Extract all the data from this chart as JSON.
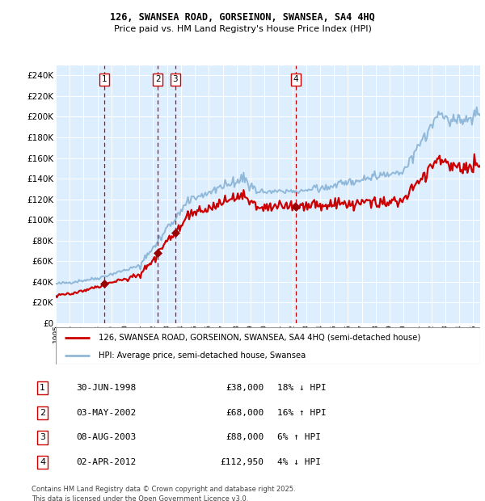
{
  "title": "126, SWANSEA ROAD, GORSEINON, SWANSEA, SA4 4HQ",
  "subtitle": "Price paid vs. HM Land Registry's House Price Index (HPI)",
  "ylim": [
    0,
    250000
  ],
  "yticks": [
    0,
    20000,
    40000,
    60000,
    80000,
    100000,
    120000,
    140000,
    160000,
    180000,
    200000,
    220000,
    240000
  ],
  "ytick_labels": [
    "£0",
    "£20K",
    "£40K",
    "£60K",
    "£80K",
    "£100K",
    "£120K",
    "£140K",
    "£160K",
    "£180K",
    "£200K",
    "£220K",
    "£240K"
  ],
  "hpi_color": "#90b8d8",
  "price_color": "#cc0000",
  "dot_color": "#990000",
  "vline_color": "#cc0000",
  "plot_bg_color": "#ddeeff",
  "xlim_start": 1995.0,
  "xlim_end": 2025.5,
  "sale_points": [
    {
      "label": "1",
      "date": "30-JUN-1998",
      "price": 38000,
      "pct": "18%",
      "direction": "↓",
      "x_year": 1998.5
    },
    {
      "label": "2",
      "date": "03-MAY-2002",
      "price": 68000,
      "pct": "16%",
      "direction": "↑",
      "x_year": 2002.33
    },
    {
      "label": "3",
      "date": "08-AUG-2003",
      "price": 88000,
      "pct": "6%",
      "direction": "↑",
      "x_year": 2003.58
    },
    {
      "label": "4",
      "date": "02-APR-2012",
      "price": 112950,
      "pct": "4%",
      "direction": "↓",
      "x_year": 2012.25
    }
  ],
  "legend_line1": "126, SWANSEA ROAD, GORSEINON, SWANSEA, SA4 4HQ (semi-detached house)",
  "legend_line2": "HPI: Average price, semi-detached house, Swansea",
  "footer1": "Contains HM Land Registry data © Crown copyright and database right 2025.",
  "footer2": "This data is licensed under the Open Government Licence v3.0."
}
